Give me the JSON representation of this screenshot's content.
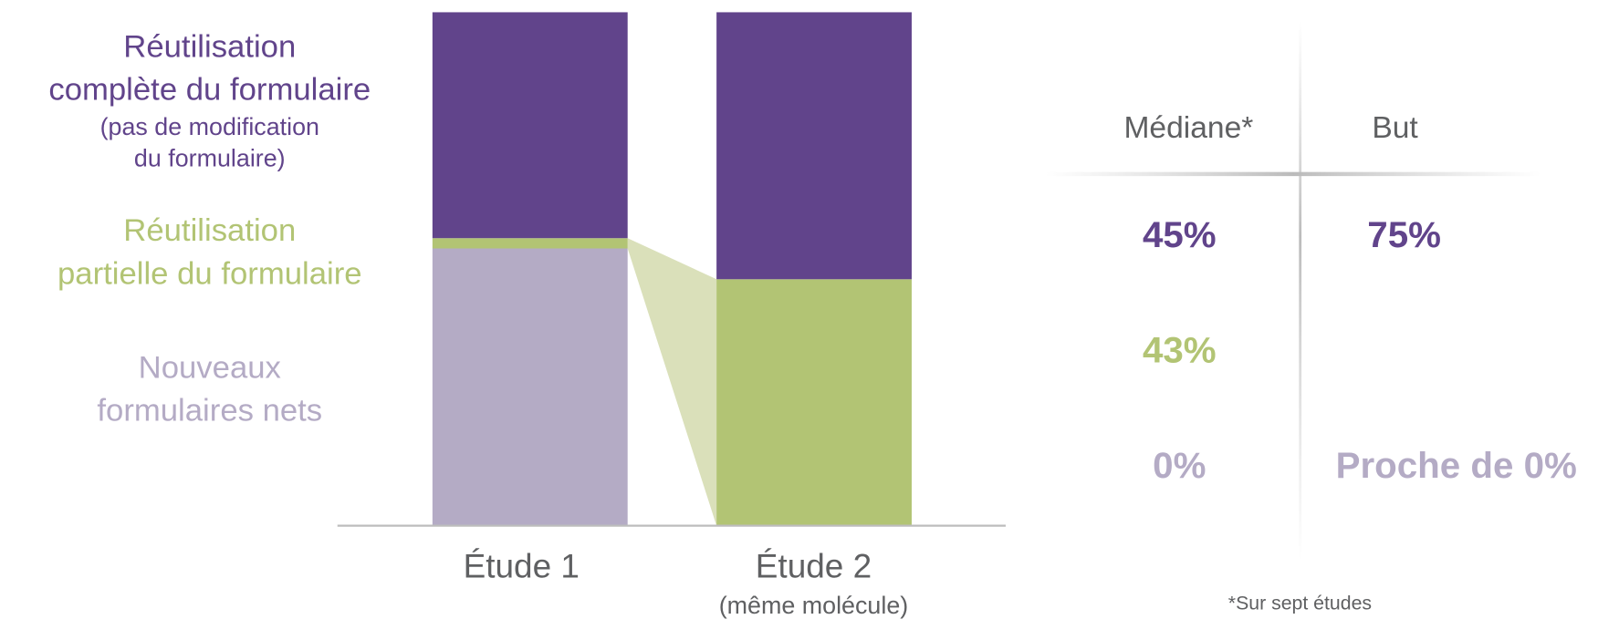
{
  "colors": {
    "complete": "#61448B",
    "partial": "#B2C474",
    "new": "#B4ABC5",
    "connector": "#DAE0BA",
    "text_gray": "#5F6062",
    "axis": "#BDBDBD"
  },
  "legend_labels": {
    "complete": {
      "line1": "Réutilisation",
      "line2": "complète du formulaire",
      "note1": "(pas de modification",
      "note2": "du formulaire)"
    },
    "partial": {
      "line1": "Réutilisation",
      "line2": "partielle du formulaire"
    },
    "new": {
      "line1": "Nouveaux",
      "line2": "formulaires nets"
    }
  },
  "table": {
    "headers": [
      "Médiane*",
      "But"
    ],
    "rows": [
      {
        "median": "45%",
        "goal": "75%"
      },
      {
        "median": "43%",
        "goal": ""
      },
      {
        "median": "0%",
        "goal": "Proche de 0%"
      }
    ],
    "footnote": "*Sur sept études"
  },
  "chart_data": {
    "type": "bar",
    "stacked": true,
    "categories": [
      "Étude 1",
      "Étude 2"
    ],
    "category_notes": [
      "",
      "(même molécule)"
    ],
    "series": [
      {
        "name": "Nouveaux formulaires nets",
        "key": "new",
        "values": [
          54,
          0
        ]
      },
      {
        "name": "Réutilisation partielle du formulaire",
        "key": "partial",
        "values": [
          2,
          48
        ]
      },
      {
        "name": "Réutilisation complète du formulaire",
        "key": "complete",
        "values": [
          44,
          52
        ]
      }
    ],
    "ylim": [
      0,
      100
    ],
    "grid": false,
    "legend_placement": "left"
  }
}
